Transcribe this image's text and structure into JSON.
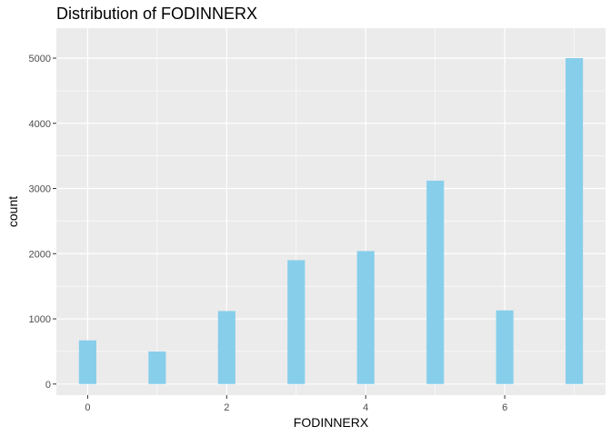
{
  "chart_data": {
    "type": "bar",
    "title": "Distribution of FODINNERX",
    "xlabel": "FODINNERX",
    "ylabel": "count",
    "x": [
      0,
      1,
      2,
      3,
      4,
      5,
      6,
      7
    ],
    "values": [
      670,
      500,
      1120,
      1900,
      2040,
      3120,
      1130,
      5000
    ],
    "xlim": [
      -0.45,
      7.45
    ],
    "ylim": [
      -170,
      5460
    ],
    "x_ticks": [
      0,
      2,
      4,
      6
    ],
    "y_ticks": [
      0,
      1000,
      2000,
      3000,
      4000,
      5000
    ],
    "bar_width": 0.25,
    "grid": true,
    "colors": {
      "bar": "#87CEEB",
      "panel": "#EBEBEB",
      "grid_major": "#FFFFFF",
      "tick": "#333333"
    }
  }
}
